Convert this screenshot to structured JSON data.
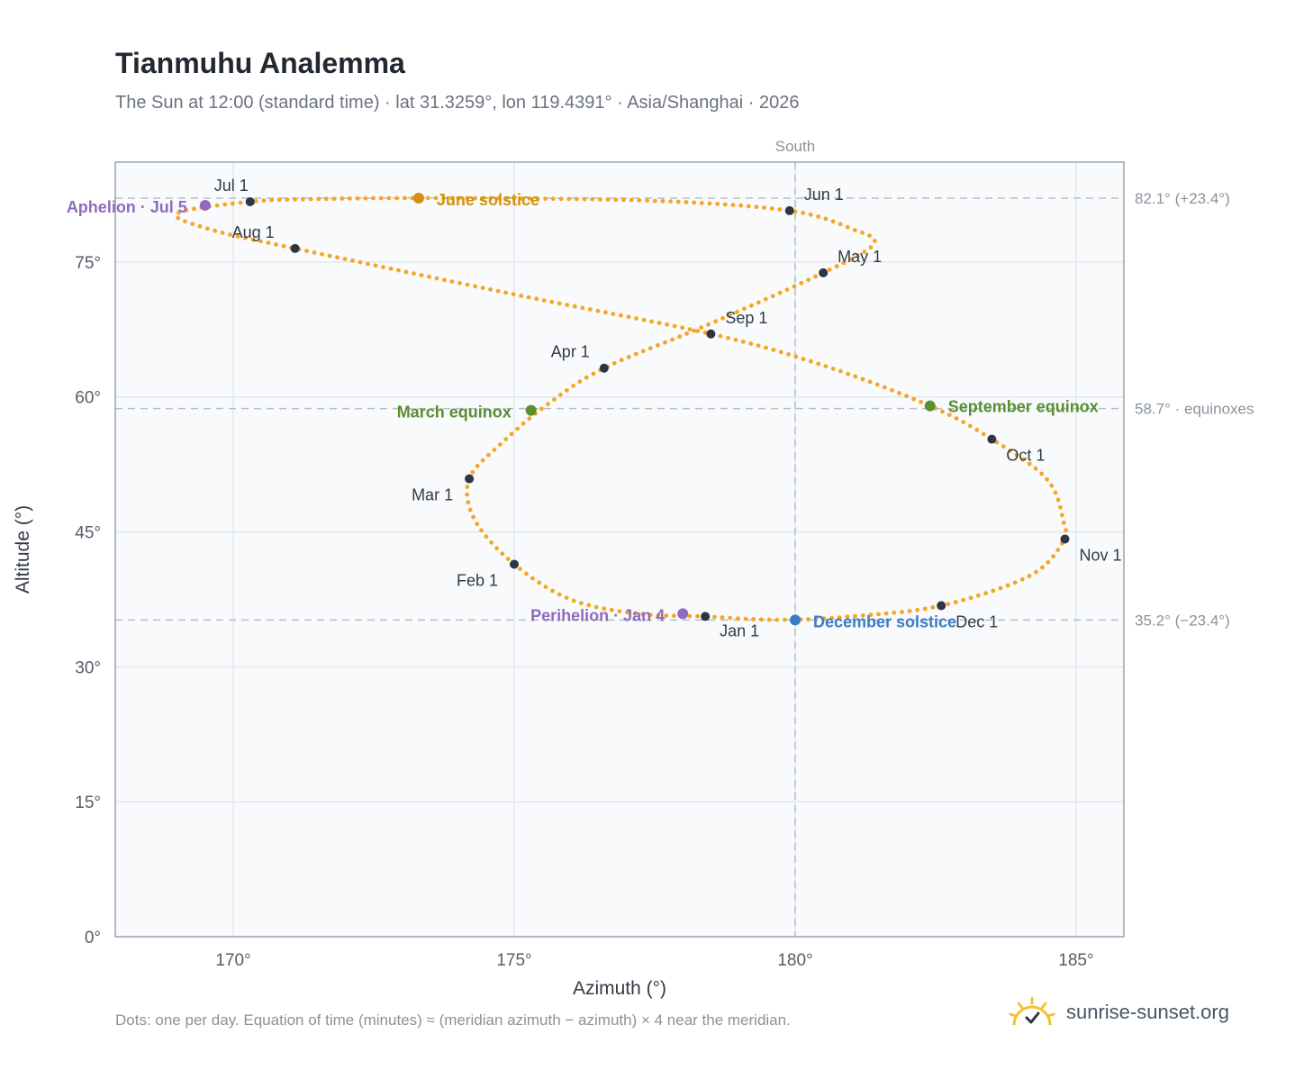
{
  "title": "Tianmuhu Analemma",
  "subtitle": "The Sun at 12:00 (standard time) · lat 31.3259°, lon 119.4391° · Asia/Shanghai · 2026",
  "footnote": "Dots: one per day. Equation of time (minutes) ≈ (meridian azimuth − azimuth) × 4 near the meridian.",
  "brand": {
    "text": "sunrise-sunset.org",
    "icon": "sun-logo-icon"
  },
  "colors": {
    "path": "#f5a623",
    "month_dot": "#2d3642",
    "solstice_june": "#d4920a",
    "solstice_december": "#3b7dc4",
    "equinox": "#5a8f2e",
    "apsis": "#8e6bbf",
    "grid": "#e4e8ee",
    "guide": "#b5bec8",
    "plot_bg": "#f8fafc",
    "axis": "#9aa4b1"
  },
  "chart_data": {
    "type": "scatter",
    "xlabel": "Azimuth (°)",
    "ylabel": "Altitude (°)",
    "xlim": [
      167.9,
      185.85
    ],
    "ylim": [
      0,
      86.1
    ],
    "xticks": [
      170,
      175,
      180,
      185
    ],
    "yticks": [
      0,
      15,
      30,
      45,
      60,
      75
    ],
    "xtick_labels": [
      "170°",
      "175°",
      "180°",
      "185°"
    ],
    "ytick_labels": [
      "0°",
      "15°",
      "30°",
      "45°",
      "60°",
      "75°"
    ],
    "grid": true,
    "meridian": {
      "azimuth": 180,
      "label": "South"
    },
    "reference_lines": [
      {
        "altitude": 82.1,
        "label": "82.1° (+23.4°)"
      },
      {
        "altitude": 58.7,
        "label": "58.7° · equinoxes"
      },
      {
        "altitude": 35.2,
        "label": "35.2° (−23.4°)"
      }
    ],
    "analemma_path": {
      "description_points": "one dot per day (interpolated through daily key positions)",
      "key_points": [
        [
          178.4,
          35.6
        ],
        [
          177.2,
          35.9
        ],
        [
          176.0,
          37.5
        ],
        [
          175.0,
          41.4
        ],
        [
          174.3,
          46.3
        ],
        [
          174.2,
          50.9
        ],
        [
          174.8,
          55.0
        ],
        [
          175.6,
          59.2
        ],
        [
          176.6,
          63.2
        ],
        [
          178.4,
          67.9
        ],
        [
          180.5,
          73.8
        ],
        [
          181.4,
          77.0
        ],
        [
          181.0,
          78.7
        ],
        [
          179.9,
          80.7
        ],
        [
          177.5,
          81.8
        ],
        [
          174.0,
          82.1
        ],
        [
          171.5,
          82.0
        ],
        [
          170.3,
          81.7
        ],
        [
          169.0,
          80.4
        ],
        [
          169.6,
          78.6
        ],
        [
          171.1,
          76.5
        ],
        [
          175.0,
          71.4
        ],
        [
          178.5,
          67.0
        ],
        [
          180.5,
          63.5
        ],
        [
          182.4,
          59.0
        ],
        [
          183.5,
          55.3
        ],
        [
          184.5,
          50.7
        ],
        [
          184.8,
          45.5
        ],
        [
          184.8,
          44.2
        ],
        [
          184.2,
          40.2
        ],
        [
          182.6,
          36.8
        ],
        [
          181.0,
          35.6
        ],
        [
          180.0,
          35.25
        ],
        [
          179.2,
          35.3
        ],
        [
          178.4,
          35.6
        ]
      ]
    },
    "month_markers": [
      {
        "label": "Jan 1",
        "azimuth": 178.4,
        "altitude": 35.6
      },
      {
        "label": "Feb 1",
        "azimuth": 175.0,
        "altitude": 41.4
      },
      {
        "label": "Mar 1",
        "azimuth": 174.2,
        "altitude": 50.9
      },
      {
        "label": "Apr 1",
        "azimuth": 176.6,
        "altitude": 63.2
      },
      {
        "label": "May 1",
        "azimuth": 180.5,
        "altitude": 73.8
      },
      {
        "label": "Jun 1",
        "azimuth": 179.9,
        "altitude": 80.7
      },
      {
        "label": "Jul 1",
        "azimuth": 170.3,
        "altitude": 81.7
      },
      {
        "label": "Aug 1",
        "azimuth": 171.1,
        "altitude": 76.5
      },
      {
        "label": "Sep 1",
        "azimuth": 178.5,
        "altitude": 67.0
      },
      {
        "label": "Oct 1",
        "azimuth": 183.5,
        "altitude": 55.3
      },
      {
        "label": "Nov 1",
        "azimuth": 184.8,
        "altitude": 44.2
      },
      {
        "label": "Dec 1",
        "azimuth": 182.6,
        "altitude": 36.8
      }
    ],
    "events": [
      {
        "label": "June solstice",
        "azimuth": 173.3,
        "altitude": 82.1,
        "color_key": "solstice_june"
      },
      {
        "label": "March equinox",
        "azimuth": 175.3,
        "altitude": 58.5,
        "color_key": "equinox"
      },
      {
        "label": "September equinox",
        "azimuth": 182.4,
        "altitude": 59.0,
        "color_key": "equinox"
      },
      {
        "label": "December solstice",
        "azimuth": 180.0,
        "altitude": 35.2,
        "color_key": "solstice_december"
      },
      {
        "label": "Aphelion · Jul 5",
        "azimuth": 169.5,
        "altitude": 81.3,
        "color_key": "apsis"
      },
      {
        "label": "Perihelion · Jan 4",
        "azimuth": 178.0,
        "altitude": 35.9,
        "color_key": "apsis"
      }
    ]
  }
}
